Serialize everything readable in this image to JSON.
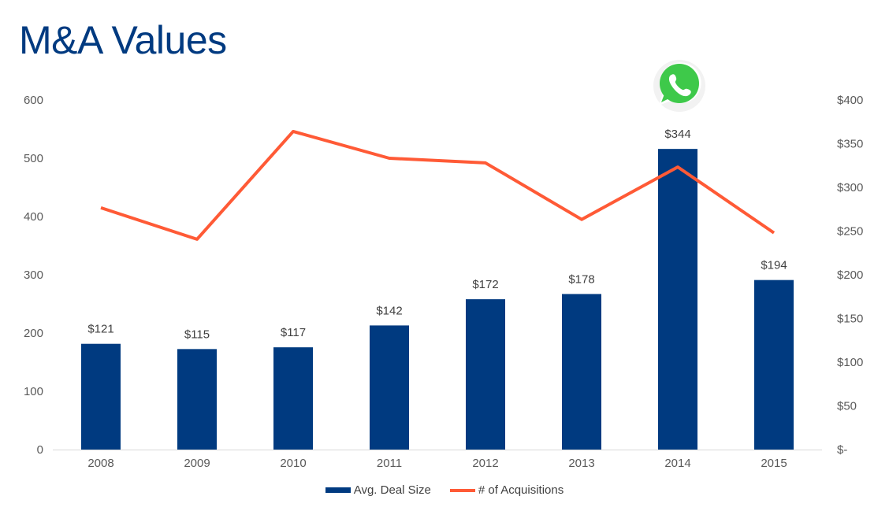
{
  "title": "M&A Values",
  "chart_data": {
    "type": "bar+line",
    "title": "M&A Values",
    "categories": [
      "2008",
      "2009",
      "2010",
      "2011",
      "2012",
      "2013",
      "2014",
      "2015"
    ],
    "series": [
      {
        "name": "Avg. Deal Size",
        "type": "bar",
        "axis": "right",
        "color": "#003A80",
        "values": [
          121,
          115,
          117,
          142,
          172,
          178,
          344,
          194
        ],
        "labels": [
          "$121",
          "$115",
          "$117",
          "$142",
          "$172",
          "$178",
          "$344",
          "$194"
        ]
      },
      {
        "name": "# of Acquisitions",
        "type": "line",
        "axis": "left",
        "color": "#FF5A36",
        "values": [
          415,
          361,
          546,
          500,
          492,
          395,
          485,
          372
        ]
      }
    ],
    "left_axis": {
      "ylim": [
        0,
        600
      ],
      "ticks": [
        "0",
        "100",
        "200",
        "300",
        "400",
        "500",
        "600"
      ]
    },
    "right_axis": {
      "ylim": [
        0,
        400
      ],
      "ticks": [
        "$-",
        "$50",
        "$100",
        "$150",
        "$200",
        "$250",
        "$300",
        "$350",
        "$400"
      ]
    },
    "legend": "bottom",
    "annotation": "whatsapp-logo above 2014"
  }
}
